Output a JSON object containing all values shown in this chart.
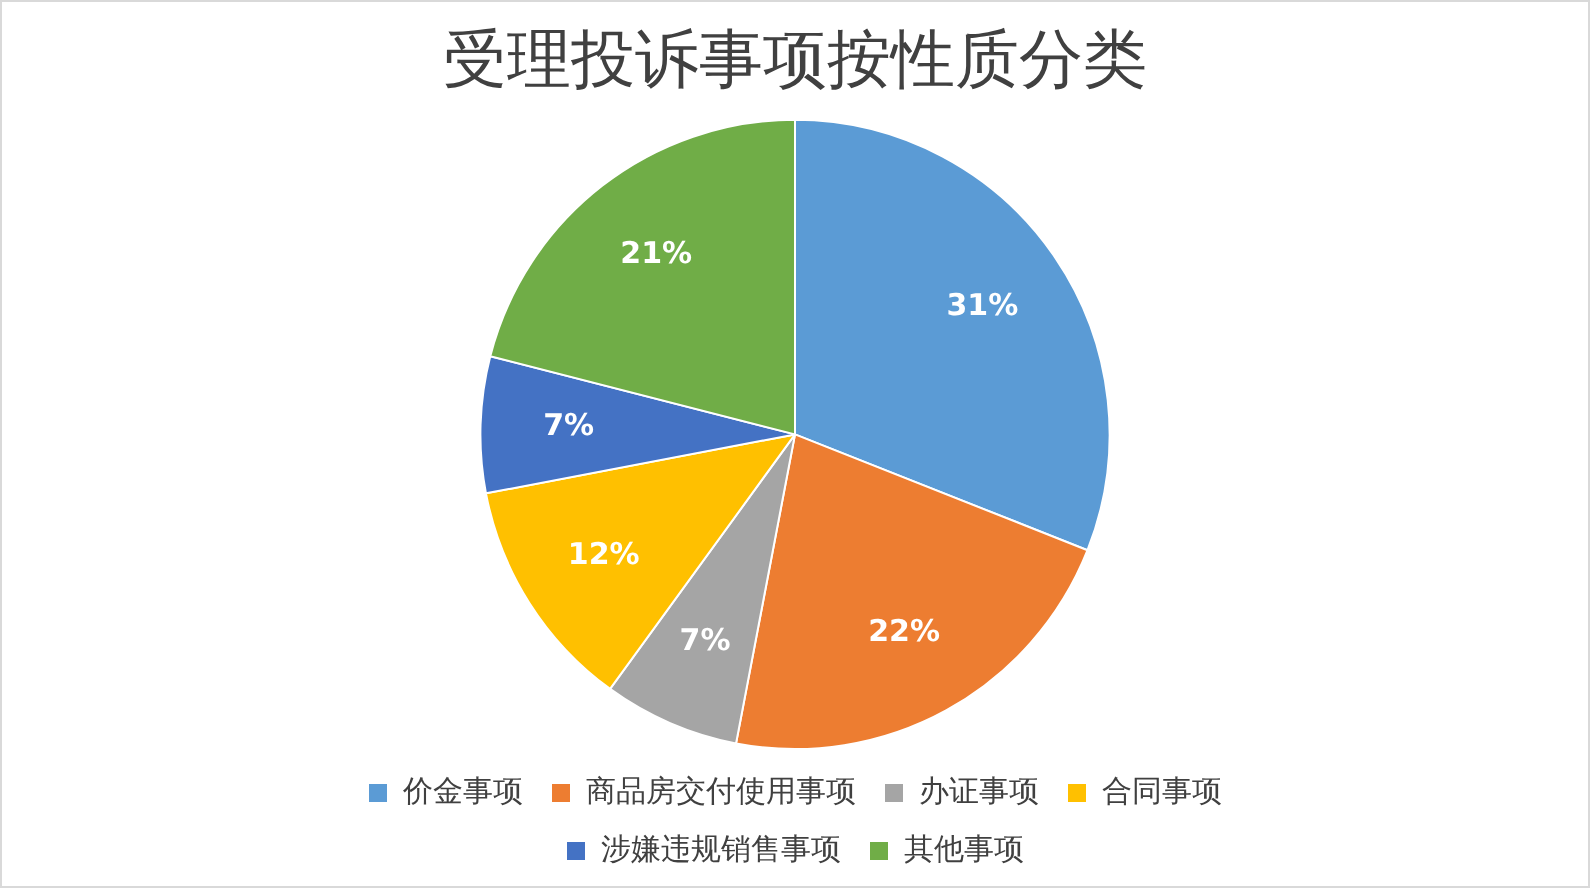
{
  "chart_data": {
    "type": "pie",
    "title": "受理投诉事项按性质分类",
    "categories": [
      "价金事项",
      "商品房交付使用事项",
      "办证事项",
      "合同事项",
      "涉嫌违规销售事项",
      "其他事项"
    ],
    "values": [
      31,
      22,
      7,
      12,
      7,
      21
    ],
    "colors": [
      "#5b9bd5",
      "#ed7d31",
      "#a5a5a5",
      "#ffc000",
      "#4472c4",
      "#70ad47"
    ],
    "value_labels": [
      "31%",
      "22%",
      "7%",
      "12%",
      "7%",
      "21%"
    ],
    "legend": "bottom"
  }
}
